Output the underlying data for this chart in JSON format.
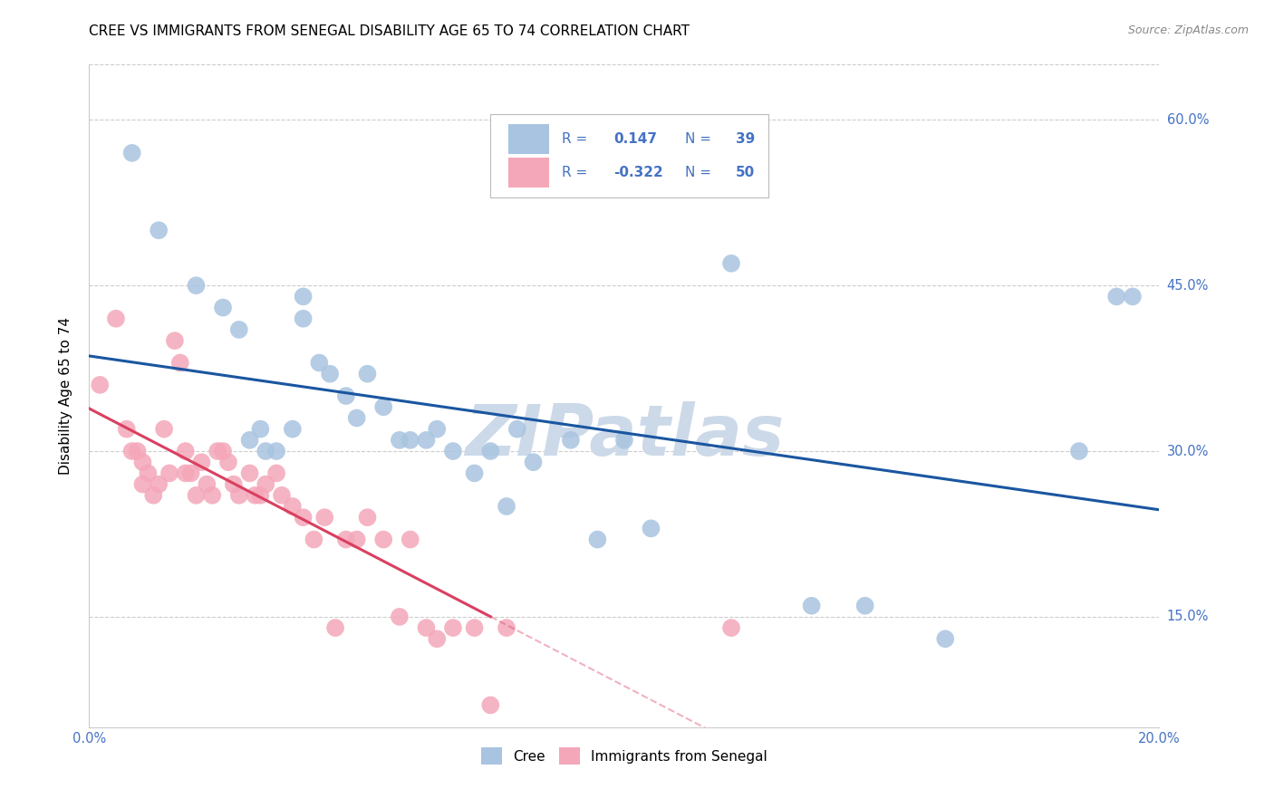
{
  "title": "CREE VS IMMIGRANTS FROM SENEGAL DISABILITY AGE 65 TO 74 CORRELATION CHART",
  "source": "Source: ZipAtlas.com",
  "ylabel": "Disability Age 65 to 74",
  "xlim": [
    0.0,
    0.2
  ],
  "ylim": [
    0.05,
    0.65
  ],
  "ytick_positions": [
    0.15,
    0.3,
    0.45,
    0.6
  ],
  "ytick_labels": [
    "15.0%",
    "30.0%",
    "45.0%",
    "60.0%"
  ],
  "legend_R_blue": "0.147",
  "legend_N_blue": "39",
  "legend_R_pink": "-0.322",
  "legend_N_pink": "50",
  "blue_color": "#a8c4e0",
  "pink_color": "#f4a7b9",
  "trend_blue_color": "#1a56a0",
  "trend_pink_color": "#d94060",
  "watermark": "ZIPatlas",
  "watermark_color": "#ccd9e8",
  "ytick_color": "#4472c4",
  "xtick_color": "#4472c4",
  "cree_x": [
    0.008,
    0.013,
    0.02,
    0.025,
    0.028,
    0.03,
    0.032,
    0.033,
    0.035,
    0.038,
    0.04,
    0.04,
    0.043,
    0.045,
    0.048,
    0.05,
    0.052,
    0.055,
    0.058,
    0.06,
    0.063,
    0.065,
    0.068,
    0.072,
    0.075,
    0.078,
    0.08,
    0.083,
    0.09,
    0.095,
    0.1,
    0.105,
    0.12,
    0.135,
    0.145,
    0.16,
    0.185,
    0.192,
    0.195
  ],
  "cree_y": [
    0.57,
    0.5,
    0.45,
    0.43,
    0.41,
    0.31,
    0.32,
    0.3,
    0.3,
    0.32,
    0.44,
    0.42,
    0.38,
    0.37,
    0.35,
    0.33,
    0.37,
    0.34,
    0.31,
    0.31,
    0.31,
    0.32,
    0.3,
    0.28,
    0.3,
    0.25,
    0.32,
    0.29,
    0.31,
    0.22,
    0.31,
    0.23,
    0.47,
    0.16,
    0.16,
    0.13,
    0.3,
    0.44,
    0.44
  ],
  "senegal_x": [
    0.002,
    0.005,
    0.007,
    0.008,
    0.009,
    0.01,
    0.01,
    0.011,
    0.012,
    0.013,
    0.014,
    0.015,
    0.016,
    0.017,
    0.018,
    0.018,
    0.019,
    0.02,
    0.021,
    0.022,
    0.023,
    0.024,
    0.025,
    0.026,
    0.027,
    0.028,
    0.03,
    0.031,
    0.032,
    0.033,
    0.035,
    0.036,
    0.038,
    0.04,
    0.042,
    0.044,
    0.046,
    0.048,
    0.05,
    0.052,
    0.055,
    0.058,
    0.06,
    0.063,
    0.065,
    0.068,
    0.072,
    0.075,
    0.078,
    0.12
  ],
  "senegal_y": [
    0.36,
    0.42,
    0.32,
    0.3,
    0.3,
    0.29,
    0.27,
    0.28,
    0.26,
    0.27,
    0.32,
    0.28,
    0.4,
    0.38,
    0.3,
    0.28,
    0.28,
    0.26,
    0.29,
    0.27,
    0.26,
    0.3,
    0.3,
    0.29,
    0.27,
    0.26,
    0.28,
    0.26,
    0.26,
    0.27,
    0.28,
    0.26,
    0.25,
    0.24,
    0.22,
    0.24,
    0.14,
    0.22,
    0.22,
    0.24,
    0.22,
    0.15,
    0.22,
    0.14,
    0.13,
    0.14,
    0.14,
    0.07,
    0.14,
    0.14
  ]
}
